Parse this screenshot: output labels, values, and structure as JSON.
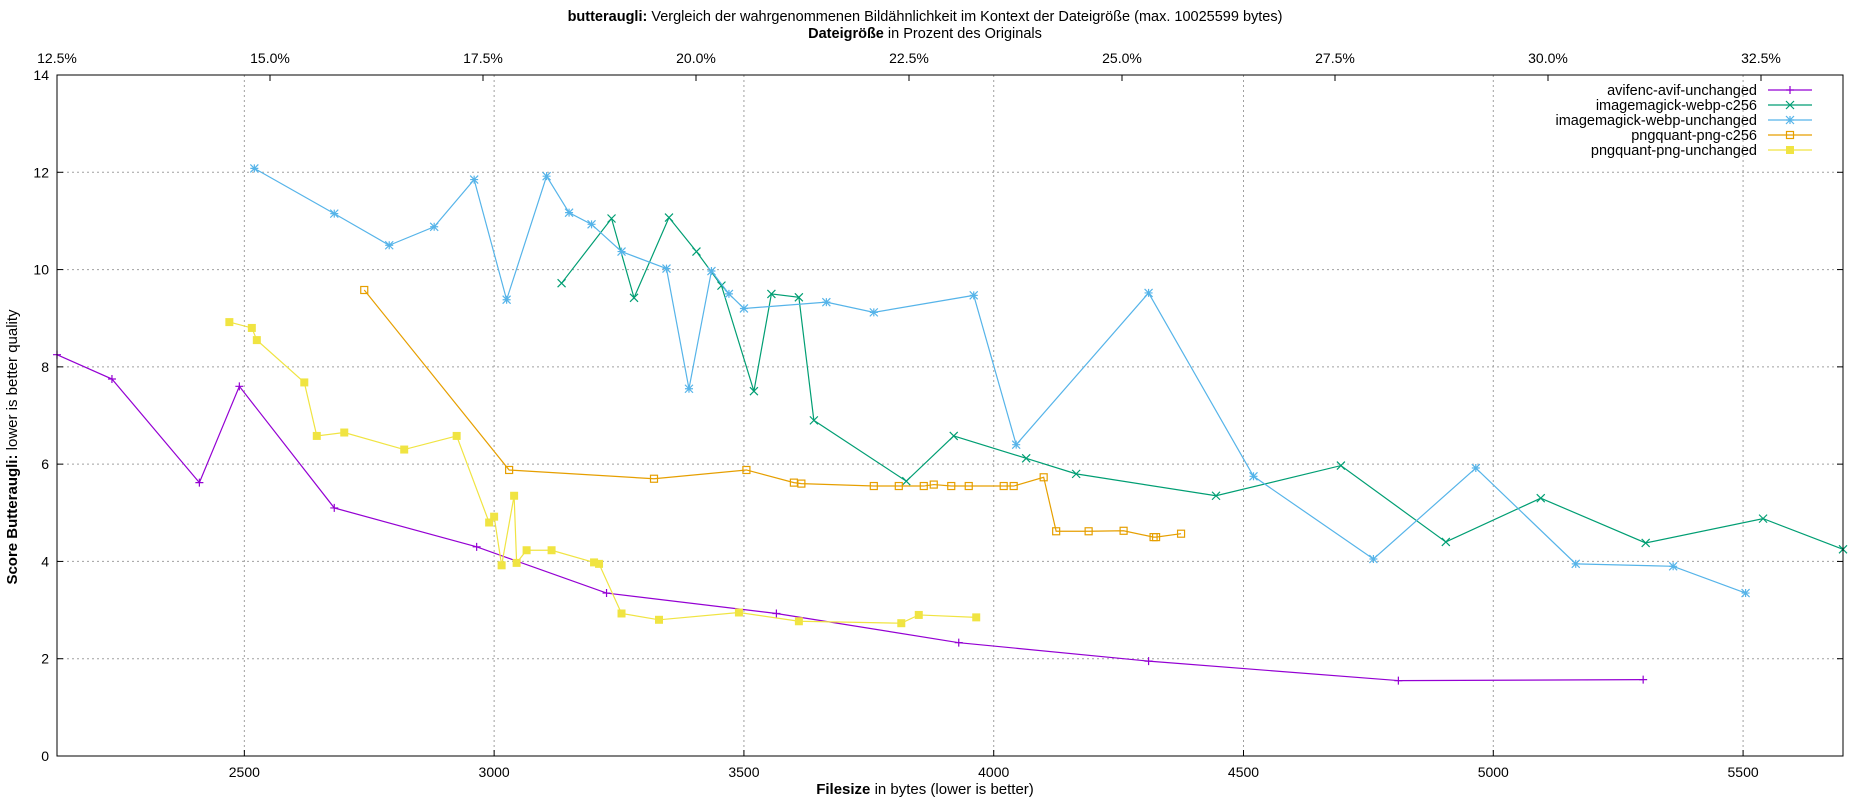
{
  "chart_data": {
    "type": "line",
    "title": {
      "bold": "butteraugli:",
      "rest": " Vergleich der wahrgenommenen Bildähnlichkeit im Kontext der Dateigröße (max. 10025599 bytes)",
      "line2_bold": "Dateigröße",
      "line2_rest": " in Prozent des Originals"
    },
    "xlabel": {
      "bold": "Filesize",
      "rest": " in bytes (lower is better)"
    },
    "ylabel": {
      "bold": "Score Butteraugli:",
      "rest": " lower is better quality"
    },
    "xlim": [
      2125,
      5700
    ],
    "ylim": [
      0,
      14
    ],
    "x_ticks": [
      2500,
      3000,
      3500,
      4000,
      4500,
      5000,
      5500
    ],
    "y_ticks": [
      0,
      2,
      4,
      6,
      8,
      10,
      12,
      14
    ],
    "x2_ticks": [
      "12.5%",
      "15.0%",
      "17.5%",
      "20.0%",
      "22.5%",
      "25.0%",
      "27.5%",
      "30.0%",
      "32.5%"
    ],
    "x2_ticks_values": [
      12.5,
      15.0,
      17.5,
      20.0,
      22.5,
      25.0,
      27.5,
      30.0,
      32.5
    ],
    "grid": true,
    "legend_position": "top-right",
    "series": [
      {
        "name": "avifenc-avif-unchanged",
        "color": "#9400d3",
        "marker": "plus",
        "x": [
          2125,
          2235,
          2410,
          2490,
          2680,
          2965,
          3225,
          3565,
          3930,
          4310,
          4810,
          5300
        ],
        "y": [
          8.25,
          7.75,
          5.62,
          7.6,
          5.1,
          4.3,
          3.35,
          2.93,
          2.33,
          1.95,
          1.55,
          1.57
        ]
      },
      {
        "name": "imagemagick-webp-c256",
        "color": "#009e73",
        "marker": "cross",
        "x": [
          3135,
          3235,
          3280,
          3350,
          3405,
          3455,
          3520,
          3555,
          3610,
          3640,
          3825,
          3920,
          4065,
          4165,
          4445,
          4695,
          4905,
          5095,
          5305,
          5540,
          5700
        ],
        "y": [
          9.72,
          11.05,
          9.42,
          11.07,
          10.37,
          9.67,
          7.5,
          9.5,
          9.43,
          6.9,
          5.65,
          6.58,
          6.12,
          5.8,
          5.35,
          5.97,
          4.4,
          5.3,
          4.38,
          4.88,
          4.25
        ]
      },
      {
        "name": "imagemagick-webp-unchanged",
        "color": "#56b4e9",
        "marker": "star",
        "x": [
          2520,
          2680,
          2790,
          2880,
          2960,
          3025,
          3105,
          3150,
          3195,
          3255,
          3345,
          3390,
          3435,
          3470,
          3500,
          3665,
          3760,
          3960,
          4045,
          4310,
          4520,
          4760,
          4965,
          5165,
          5360,
          5505
        ],
        "y": [
          12.08,
          11.15,
          10.5,
          10.88,
          11.85,
          9.38,
          11.92,
          11.17,
          10.93,
          10.37,
          10.02,
          7.55,
          9.97,
          9.5,
          9.2,
          9.33,
          9.12,
          9.47,
          6.4,
          9.52,
          5.75,
          4.05,
          5.92,
          3.95,
          3.9,
          3.35
        ]
      },
      {
        "name": "pngquant-png-c256",
        "color": "#e69f00",
        "marker": "square",
        "x": [
          2740,
          3030,
          3320,
          3505,
          3600,
          3615,
          3760,
          3810,
          3860,
          3880,
          3915,
          3950,
          4020,
          4040,
          4100,
          4125,
          4190,
          4260,
          4320,
          4325,
          4375
        ],
        "y": [
          9.58,
          5.88,
          5.7,
          5.88,
          5.62,
          5.6,
          5.55,
          5.55,
          5.55,
          5.58,
          5.55,
          5.55,
          5.55,
          5.55,
          5.73,
          4.62,
          4.62,
          4.63,
          4.5,
          4.5,
          4.57
        ]
      },
      {
        "name": "pngquant-png-unchanged",
        "color": "#f0e442",
        "marker": "filled-square",
        "x": [
          2470,
          2515,
          2525,
          2620,
          2645,
          2700,
          2820,
          2925,
          2990,
          3000,
          3015,
          3040,
          3045,
          3065,
          3115,
          3200,
          3210,
          3255,
          3330,
          3490,
          3610,
          3815,
          3850,
          3965
        ],
        "y": [
          8.92,
          8.8,
          8.55,
          7.68,
          6.58,
          6.65,
          6.3,
          6.58,
          4.8,
          4.92,
          3.92,
          5.35,
          3.97,
          4.23,
          4.23,
          3.98,
          3.95,
          2.93,
          2.8,
          2.95,
          2.77,
          2.73,
          2.9,
          2.85
        ]
      }
    ]
  }
}
